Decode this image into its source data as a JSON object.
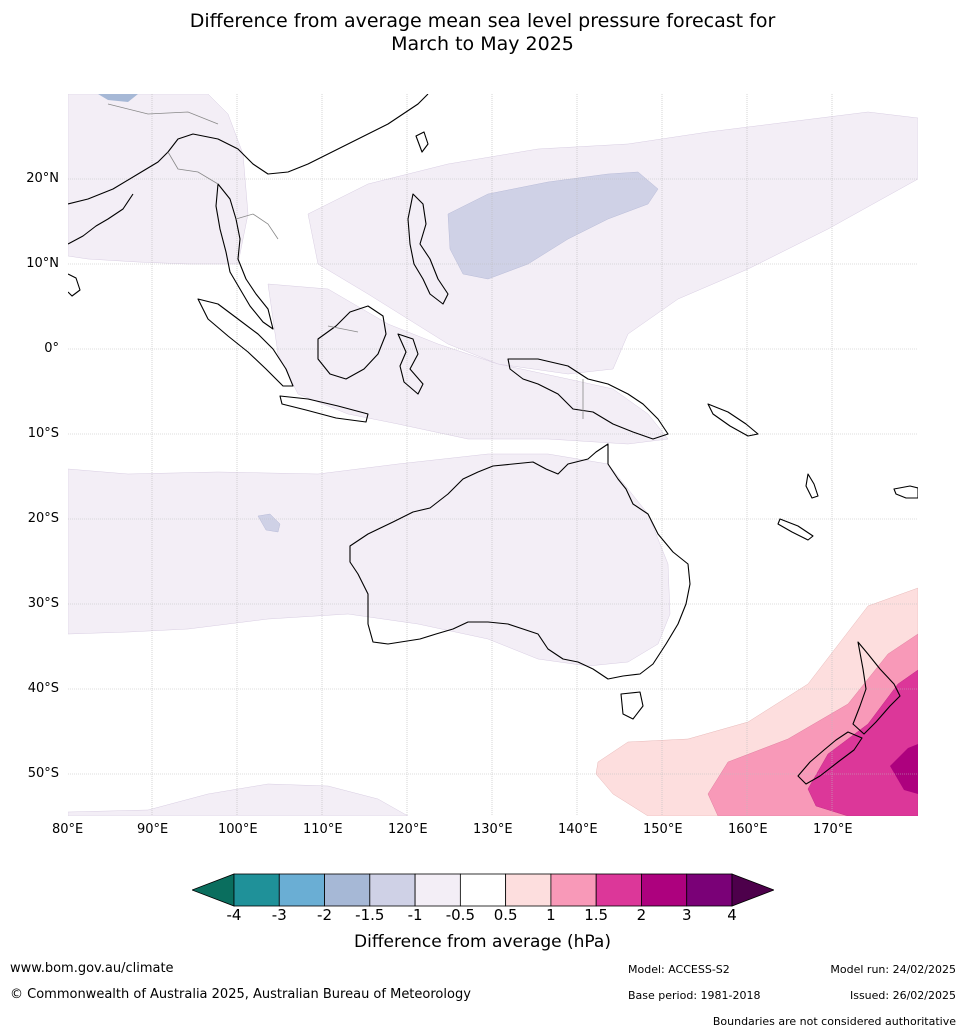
{
  "title_line1": "Difference from average mean sea level pressure forecast for",
  "title_line2": "March to May 2025",
  "lat_labels": [
    "20°N",
    "10°N",
    "0°",
    "10°S",
    "20°S",
    "30°S",
    "40°S",
    "50°S"
  ],
  "lon_labels": [
    "80°E",
    "90°E",
    "100°E",
    "110°E",
    "120°E",
    "130°E",
    "140°E",
    "150°E",
    "160°E",
    "170°E"
  ],
  "colorbar": {
    "ticks": [
      "-4",
      "-3",
      "-2",
      "-1.5",
      "-1",
      "-0.5",
      "0.5",
      "1",
      "1.5",
      "2",
      "3",
      "4"
    ],
    "colors": [
      "#0a6e5e",
      "#1f9199",
      "#6aaed4",
      "#a6b8d6",
      "#cfd1e6",
      "#f3eef6",
      "#ffffff",
      "#fddede",
      "#f899b8",
      "#dc3799",
      "#ad017e",
      "#7a0177",
      "#4d004b"
    ],
    "label": "Difference from average (hPa)"
  },
  "footer": {
    "website": "www.bom.gov.au/climate",
    "copyright": "© Commonwealth of Australia 2025, Australian Bureau of Meteorology",
    "model": "Model: ACCESS-S2",
    "base_period": "Base period: 1981-2018",
    "model_run": "Model run: 24/02/2025",
    "issued": "Issued: 26/02/2025",
    "boundaries": "Boundaries are not considered authoritative"
  }
}
